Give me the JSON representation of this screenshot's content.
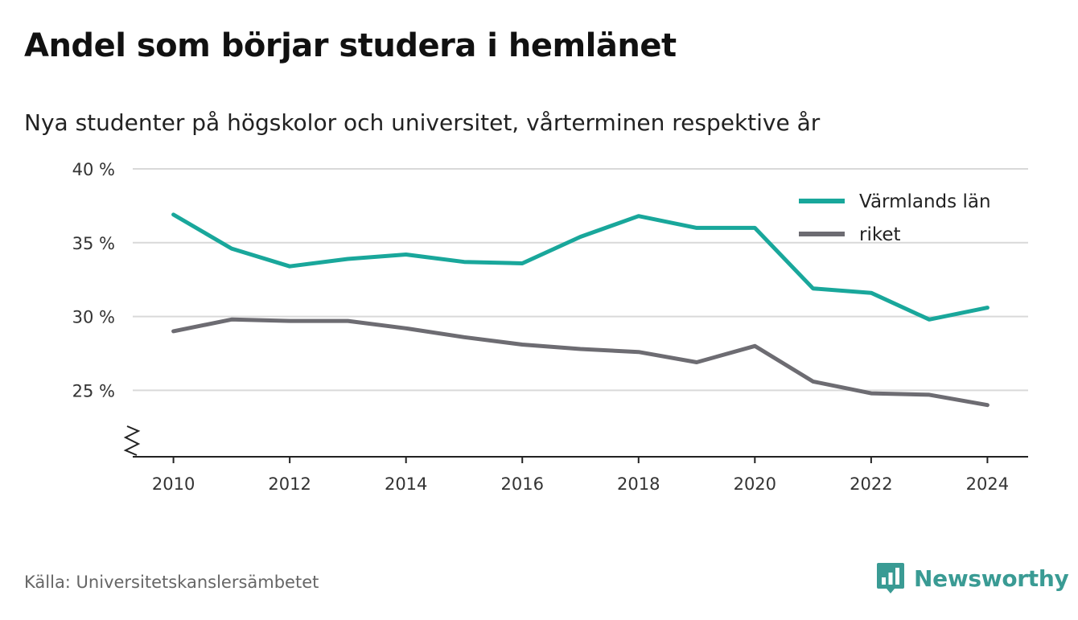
{
  "header": {
    "title": "Andel som börjar studera i hemlänet",
    "subtitle": "Nya studenter på högskolor och universitet, vårterminen respektive år"
  },
  "footer": {
    "source": "Källa: Universitetskanslersämbetet",
    "brand": "Newsworthy",
    "brand_icon": "bar-chart-icon"
  },
  "colors": {
    "varmland": "#19a79b",
    "riket": "#6d6c72",
    "grid": "#d9d9d9",
    "brand": "#3a9b94"
  },
  "chart_data": {
    "type": "line",
    "x": [
      2010,
      2011,
      2012,
      2013,
      2014,
      2015,
      2016,
      2017,
      2018,
      2019,
      2020,
      2021,
      2022,
      2023,
      2024
    ],
    "series": [
      {
        "name": "Värmlands län",
        "color": "#19a79b",
        "values": [
          36.9,
          34.6,
          33.4,
          33.9,
          34.2,
          33.7,
          33.6,
          35.4,
          36.8,
          36.0,
          36.0,
          31.9,
          31.6,
          29.8,
          30.6
        ]
      },
      {
        "name": "riket",
        "color": "#6d6c72",
        "values": [
          29.0,
          29.8,
          29.7,
          29.7,
          29.2,
          28.6,
          28.1,
          27.8,
          27.6,
          26.9,
          28.0,
          25.6,
          24.8,
          24.7,
          24.0
        ]
      }
    ],
    "y_ticks": [
      25,
      30,
      35,
      40
    ],
    "y_tick_labels": [
      "25 %",
      "30 %",
      "35 %",
      "40 %"
    ],
    "x_ticks": [
      2010,
      2012,
      2014,
      2016,
      2018,
      2020,
      2022,
      2024
    ],
    "x_tick_labels": [
      "2010",
      "2012",
      "2014",
      "2016",
      "2018",
      "2020",
      "2022",
      "2024"
    ],
    "ylim": [
      20.5,
      40
    ],
    "xlim": [
      2009.3,
      2024.7
    ],
    "grid": true,
    "axis_break": true,
    "legend_position": "top-right"
  }
}
